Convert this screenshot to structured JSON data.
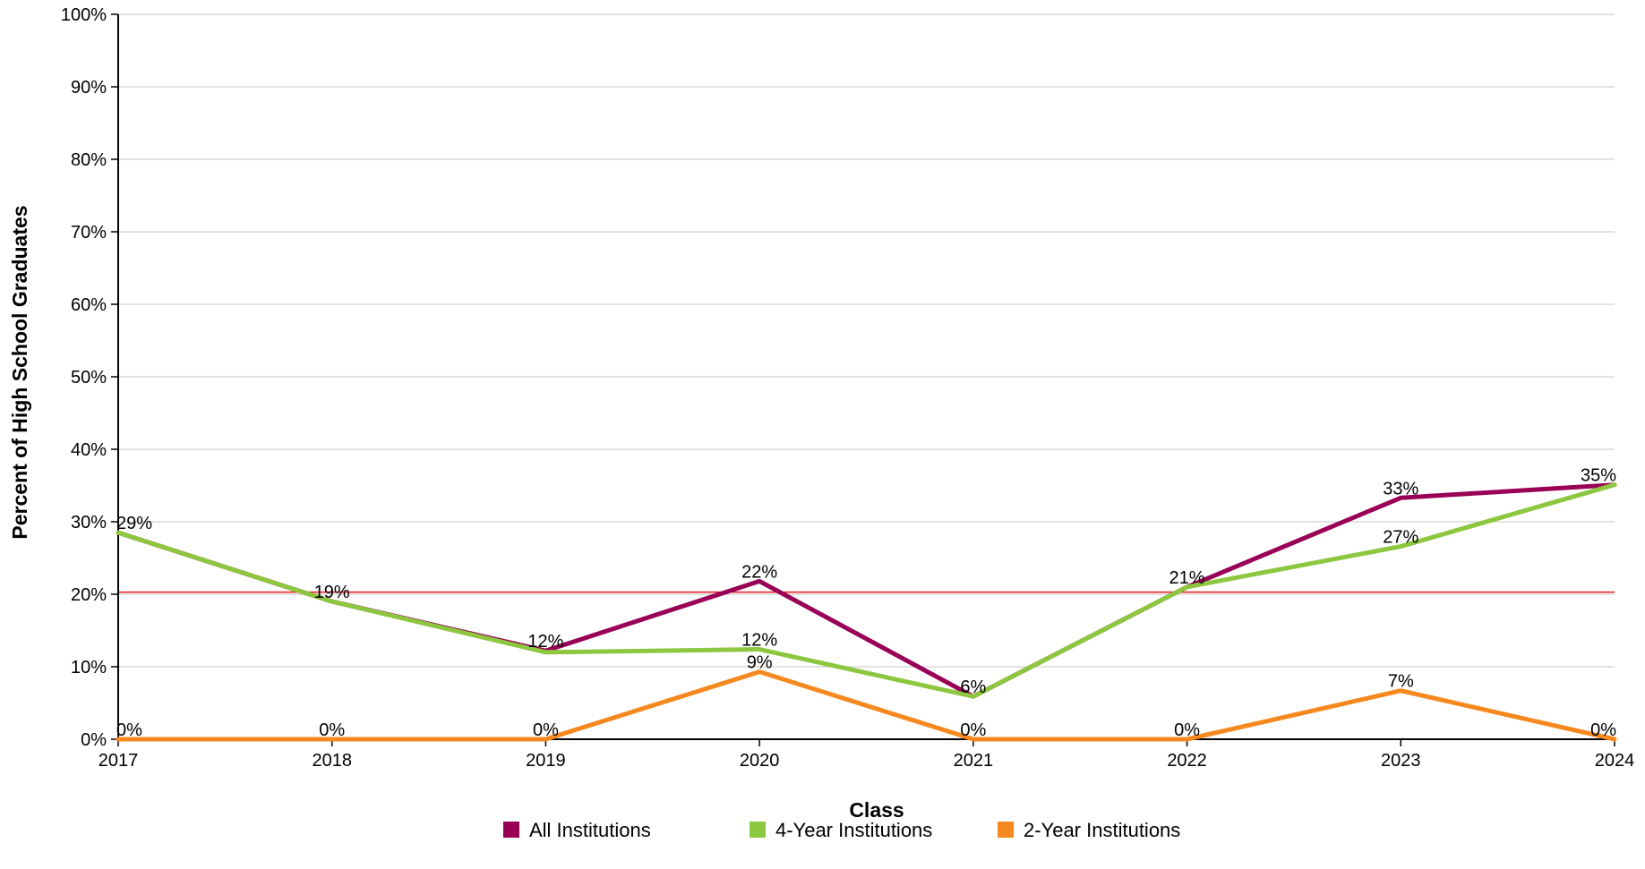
{
  "chart_data": {
    "type": "line",
    "xlabel": "Class",
    "ylabel": "Percent of High School Graduates",
    "x": [
      "2017",
      "2018",
      "2019",
      "2020",
      "2021",
      "2022",
      "2023",
      "2024"
    ],
    "ylim": [
      0,
      100
    ],
    "y_ticks": [
      "0%",
      "10%",
      "20%",
      "30%",
      "40%",
      "50%",
      "60%",
      "70%",
      "80%",
      "90%",
      "100%"
    ],
    "y_tick_values": [
      0,
      10,
      20,
      30,
      40,
      50,
      60,
      70,
      80,
      90,
      100
    ],
    "grid": true,
    "legend_position": "bottom",
    "reference_line": {
      "value": 20.3,
      "color": "#e8141c"
    },
    "series": [
      {
        "name": "All Institutions",
        "color": "#990055",
        "values": [
          28.5,
          19.0,
          12.2,
          21.8,
          5.9,
          21.0,
          33.3,
          35.1
        ],
        "labels": [
          "29%",
          "19%",
          "12%",
          "22%",
          "6%",
          "21%",
          "33%",
          "35%"
        ],
        "show_labels": [
          true,
          true,
          true,
          true,
          true,
          true,
          true,
          true
        ]
      },
      {
        "name": "4-Year Institutions",
        "color": "#8dc63f",
        "values": [
          28.5,
          19.0,
          12.0,
          12.4,
          5.9,
          21.0,
          26.6,
          35.1
        ],
        "labels": [
          "29%",
          "19%",
          "12%",
          "12%",
          "6%",
          "21%",
          "27%",
          "35%"
        ],
        "show_labels": [
          false,
          false,
          false,
          true,
          false,
          false,
          true,
          false
        ]
      },
      {
        "name": "2-Year Institutions",
        "color": "#f5891f",
        "values": [
          0,
          0,
          0,
          9.3,
          0,
          0,
          6.7,
          0
        ],
        "labels": [
          "0%",
          "0%",
          "0%",
          "9%",
          "0%",
          "0%",
          "7%",
          "0%"
        ],
        "show_labels": [
          true,
          true,
          true,
          true,
          true,
          true,
          true,
          true
        ]
      }
    ]
  }
}
